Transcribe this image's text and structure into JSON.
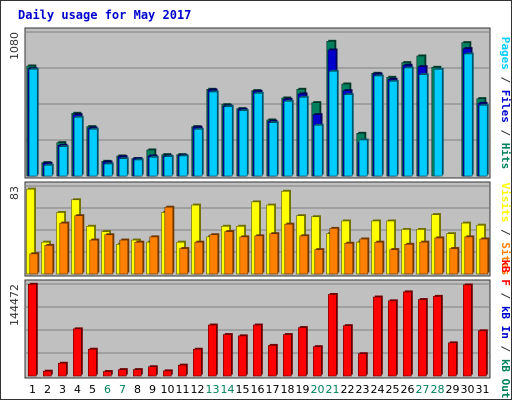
{
  "chart_data": {
    "type": "bar",
    "title": "Daily usage for May 2017",
    "categories": [
      "1",
      "2",
      "3",
      "4",
      "5",
      "6",
      "7",
      "8",
      "9",
      "10",
      "11",
      "12",
      "13",
      "14",
      "15",
      "16",
      "17",
      "18",
      "19",
      "20",
      "21",
      "22",
      "23",
      "24",
      "25",
      "26",
      "27",
      "28",
      "29",
      "30",
      "31"
    ],
    "weekend_days": [
      "6",
      "7",
      "13",
      "14",
      "20",
      "21",
      "27",
      "28"
    ],
    "panels": [
      {
        "name": "hits_files_pages",
        "ymax_label": "1080",
        "ymax": 1080,
        "side_label": [
          {
            "text": "Pages",
            "color": "#00ccff"
          },
          {
            "text": " / ",
            "color": "#333333"
          },
          {
            "text": "Files",
            "color": "#0000cc"
          },
          {
            "text": " / ",
            "color": "#333333"
          },
          {
            "text": "Hits",
            "color": "#00805c"
          }
        ],
        "series": [
          {
            "name": "Hits",
            "color": "#00805c",
            "values": [
              825,
              100,
              250,
              470,
              370,
              110,
              150,
              130,
              195,
              160,
              160,
              370,
              650,
              535,
              505,
              640,
              420,
              585,
              650,
              550,
              1010,
              690,
              320,
              770,
              740,
              850,
              900,
              815,
              0,
              1000,
              580
            ]
          },
          {
            "name": "Files",
            "color": "#0000cc",
            "values": [
              805,
              95,
              230,
              460,
              360,
              105,
              145,
              130,
              150,
              150,
              155,
              365,
              645,
              525,
              500,
              635,
              410,
              575,
              615,
              460,
              945,
              640,
              250,
              765,
              725,
              830,
              820,
              0,
              0,
              955,
              545
            ]
          },
          {
            "name": "Pages",
            "color": "#00ccff",
            "values": [
              800,
              80,
              220,
              440,
              350,
              90,
              130,
              120,
              140,
              145,
              150,
              350,
              630,
              520,
              490,
              620,
              400,
              560,
              590,
              380,
              785,
              610,
              270,
              750,
              710,
              810,
              760,
              800,
              0,
              915,
              530
            ]
          }
        ]
      },
      {
        "name": "visits_sites",
        "ymax_label": "83",
        "ymax": 83,
        "side_label": [
          {
            "text": "Visits",
            "color": "#ffff00"
          },
          {
            "text": " / ",
            "color": "#333333"
          },
          {
            "text": "Sites",
            "color": "#ff8000"
          }
        ],
        "series": [
          {
            "name": "Visits",
            "color": "#ffff00",
            "values": [
              80,
              30,
              58,
              70,
              45,
              40,
              28,
              32,
              30,
              58,
              30,
              65,
              35,
              45,
              45,
              68,
              65,
              78,
              55,
              54,
              38,
              50,
              30,
              50,
              50,
              42,
              42,
              56,
              38,
              48,
              46
            ]
          },
          {
            "name": "Sites",
            "color": "#ff8000",
            "values": [
              19,
              27,
              48,
              55,
              32,
              37,
              32,
              30,
              35,
              63,
              24,
              30,
              37,
              40,
              35,
              36,
              38,
              47,
              36,
              23,
              43,
              29,
              33,
              30,
              23,
              28,
              30,
              34,
              24,
              35,
              33
            ]
          }
        ]
      },
      {
        "name": "kbytes",
        "ymax_label": "144472",
        "ymax": 144472,
        "side_label": [
          {
            "text": "kB F",
            "color": "#ff0000"
          },
          {
            "text": " / ",
            "color": "#333333"
          },
          {
            "text": "kB In",
            "color": "#0000cc"
          },
          {
            "text": " / ",
            "color": "#333333"
          },
          {
            "text": "kB Out",
            "color": "#00805c"
          }
        ],
        "series": [
          {
            "name": "kB F",
            "color": "#ff0000",
            "values": [
              144000,
              7500,
              20000,
              74000,
              42000,
              7000,
              10000,
              10000,
              14500,
              8000,
              17000,
              42000,
              80000,
              65000,
              63000,
              80000,
              48000,
              65000,
              76000,
              46000,
              128000,
              79000,
              35000,
              124000,
              118000,
              132000,
              120000,
              125000,
              52000,
              143000,
              71000
            ]
          }
        ]
      }
    ]
  },
  "colors": {
    "border": "#333333",
    "title": "#0000cc",
    "ylabel": "#333333",
    "panel_bg": "#c0c0c0",
    "weekday_tick": "#000000",
    "weekend_tick": "#00805c"
  }
}
